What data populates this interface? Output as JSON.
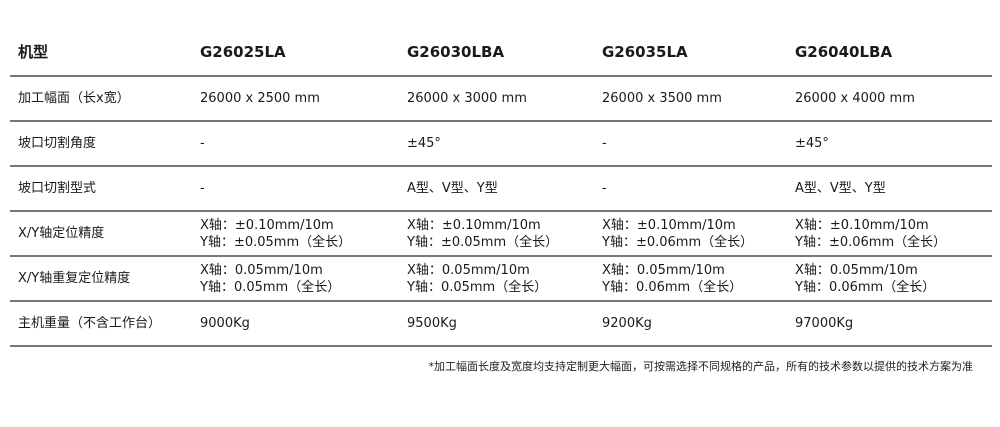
{
  "table": {
    "header": [
      "机型",
      "G26025LA",
      "G26030LBA",
      "G26035LA",
      "G26040LBA"
    ],
    "rows": [
      {
        "label": "加工幅面（长x宽）",
        "values": [
          [
            "26000 x 2500 mm"
          ],
          [
            "26000 x 3000 mm"
          ],
          [
            "26000 x 3500 mm"
          ],
          [
            "26000 x 4000 mm"
          ]
        ]
      },
      {
        "label": "坡口切割角度",
        "values": [
          [
            "-"
          ],
          [
            "±45°"
          ],
          [
            "-"
          ],
          [
            "±45°"
          ]
        ]
      },
      {
        "label": "坡口切割型式",
        "values": [
          [
            "-"
          ],
          [
            "A型、V型、Y型"
          ],
          [
            "-"
          ],
          [
            "A型、V型、Y型"
          ]
        ]
      },
      {
        "label": "X/Y轴定位精度",
        "values": [
          [
            "X轴：±0.10mm/10m",
            "Y轴：±0.05mm（全长）"
          ],
          [
            "X轴：±0.10mm/10m",
            "Y轴：±0.05mm（全长）"
          ],
          [
            "X轴：±0.10mm/10m",
            "Y轴：±0.06mm（全长）"
          ],
          [
            "X轴：±0.10mm/10m",
            "Y轴：±0.06mm（全长）"
          ]
        ]
      },
      {
        "label": "X/Y轴重复定位精度",
        "values": [
          [
            "X轴：0.05mm/10m",
            "Y轴：0.05mm（全长）"
          ],
          [
            "X轴：0.05mm/10m",
            "Y轴：0.05mm（全长）"
          ],
          [
            "X轴：0.05mm/10m",
            "Y轴：0.06mm（全长）"
          ],
          [
            "X轴：0.05mm/10m",
            "Y轴：0.06mm（全长）"
          ]
        ]
      },
      {
        "label": "主机重量（不含工作台）",
        "values": [
          [
            "9000Kg"
          ],
          [
            "9500Kg"
          ],
          [
            "9200Kg"
          ],
          [
            "97000Kg"
          ]
        ]
      }
    ]
  },
  "footnote": "*加工幅面长度及宽度均支持定制更大幅面，可按需选择不同规格的产品，所有的技术参数以提供的技术方案为准"
}
